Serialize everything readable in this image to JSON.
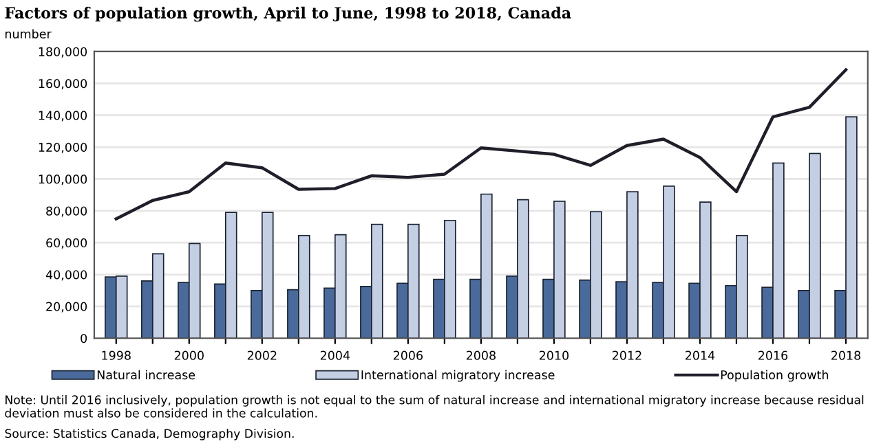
{
  "chart_data": {
    "type": "bar",
    "title": "Factors of population growth, April to June, 1998 to 2018, Canada",
    "ylabel": "number",
    "categories": [
      "1998",
      null,
      "2000",
      null,
      "2002",
      null,
      "2004",
      null,
      "2006",
      null,
      "2008",
      null,
      "2010",
      null,
      "2012",
      null,
      "2014",
      null,
      "2016",
      null,
      "2018"
    ],
    "series": [
      {
        "name": "Natural increase",
        "color": "#4a6a9c",
        "values": [
          38500,
          36000,
          35000,
          34000,
          30000,
          30500,
          31500,
          32500,
          34500,
          37000,
          37000,
          39000,
          37000,
          36500,
          35500,
          35000,
          34500,
          33000,
          32000,
          30000,
          30000
        ]
      },
      {
        "name": "International migratory increase",
        "color": "#c5cfe4",
        "values": [
          39000,
          53000,
          59500,
          79000,
          79000,
          64500,
          65000,
          71500,
          71500,
          74000,
          90500,
          87000,
          86000,
          79500,
          92000,
          95500,
          85500,
          64500,
          110000,
          116000,
          139000
        ]
      },
      {
        "name": "Population growth",
        "type": "line",
        "color": "#1f1f2a",
        "values": [
          75000,
          86500,
          92000,
          110000,
          107000,
          93500,
          94000,
          102000,
          101000,
          103000,
          119500,
          117500,
          115500,
          108500,
          121000,
          125000,
          113500,
          92000,
          139000,
          145000,
          168500
        ]
      }
    ],
    "ylim": [
      0,
      180000
    ],
    "yticks": [
      {
        "value": 0,
        "label": "0"
      },
      {
        "value": 20000,
        "label": "20,000"
      },
      {
        "value": 40000,
        "label": "40,000"
      },
      {
        "value": 60000,
        "label": "60,000"
      },
      {
        "value": 80000,
        "label": "80,000"
      },
      {
        "value": 100000,
        "label": "100,000"
      },
      {
        "value": 120000,
        "label": "120,000"
      },
      {
        "value": 140000,
        "label": "140,000"
      },
      {
        "value": 160000,
        "label": "160,000"
      },
      {
        "value": 180000,
        "label": "180,000"
      }
    ],
    "grid": "y",
    "legend": "bottom",
    "annotations": [
      "Note: Until 2016 inclusively, population growth is not equal to the sum of natural increase and international migratory increase because residual deviation must also be considered in the calculation.",
      "Source: Statistics Canada, Demography Division."
    ]
  }
}
